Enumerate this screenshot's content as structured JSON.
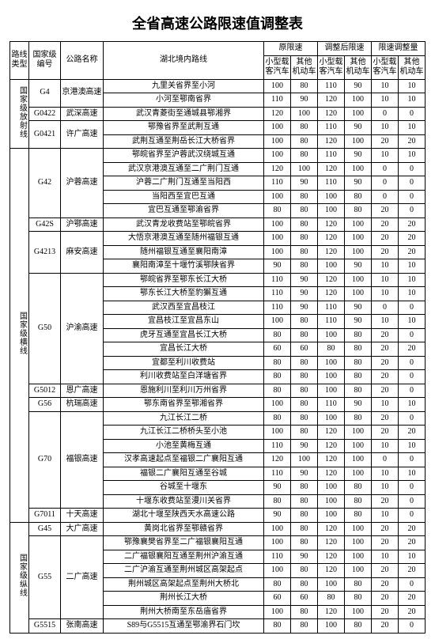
{
  "title": "全省高速公路限速值调整表",
  "header": {
    "routeType": "路线\n类型",
    "nationalCode": "国家级\n编号",
    "roadName": "公路名称",
    "segment": "湖北境内路线",
    "origLimit": "原限速",
    "newLimit": "调整后限速",
    "diff": "限速调整量",
    "smallCar": "小型载\n客汽车",
    "otherVeh": "其他\n机动车"
  },
  "groups": [
    {
      "routeType": "国家级放射线",
      "roads": [
        {
          "code": "G4",
          "name": "京港澳高速",
          "segs": [
            {
              "seg": "九里关省界至小河",
              "o1": 100,
              "o2": 80,
              "n1": 110,
              "n2": 90,
              "d1": 10,
              "d2": 10
            },
            {
              "seg": "小河至鄂南省界",
              "o1": 110,
              "o2": 90,
              "n1": 120,
              "n2": 100,
              "d1": 10,
              "d2": 10
            }
          ]
        },
        {
          "code": "G0422",
          "name": "武深高速",
          "segs": [
            {
              "seg": "武汉青菱街至通城县鄂湘界",
              "o1": 120,
              "o2": 100,
              "n1": 120,
              "n2": 100,
              "d1": 0,
              "d2": 0
            }
          ]
        },
        {
          "code": "G0421",
          "name": "许广高速",
          "segs": [
            {
              "seg": "鄂豫省界至武荆互通",
              "o1": 100,
              "o2": 80,
              "n1": 110,
              "n2": 90,
              "d1": 10,
              "d2": 10
            },
            {
              "seg": "武荆互通至荆岳长江大桥省界",
              "o1": 100,
              "o2": 80,
              "n1": 120,
              "n2": 100,
              "d1": 20,
              "d2": 20
            }
          ]
        }
      ]
    },
    {
      "routeType": "国家级横线",
      "roads": [
        {
          "code": "G42",
          "name": "沪蓉高速",
          "segs": [
            {
              "seg": "鄂皖省界至沪蓉武汉绕城互通",
              "o1": 100,
              "o2": 80,
              "n1": 110,
              "n2": 90,
              "d1": 10,
              "d2": 10
            },
            {
              "seg": "武汉京港澳互通至二广荆门互通",
              "o1": 120,
              "o2": 100,
              "n1": 120,
              "n2": 100,
              "d1": 0,
              "d2": 0
            },
            {
              "seg": "沪蓉二广荆门互通至当阳西",
              "o1": 110,
              "o2": 90,
              "n1": 110,
              "n2": 90,
              "d1": 0,
              "d2": 0
            },
            {
              "seg": "当阳西至宜巴互通",
              "o1": 100,
              "o2": 80,
              "n1": 100,
              "n2": 80,
              "d1": 0,
              "d2": 0
            },
            {
              "seg": "宜巴互通至鄂渝省界",
              "o1": 80,
              "o2": 80,
              "n1": 100,
              "n2": 80,
              "d1": 20,
              "d2": 0
            }
          ]
        },
        {
          "code": "G42S",
          "name": "沪鄂高速",
          "segs": [
            {
              "seg": "武汉青龙收费站至鄂皖省界",
              "o1": 100,
              "o2": 80,
              "n1": 120,
              "n2": 100,
              "d1": 20,
              "d2": 20
            }
          ]
        },
        {
          "code": "G4213",
          "name": "麻安高速",
          "segs": [
            {
              "seg": "大悟京港澳互通至随州福银互通",
              "o1": 100,
              "o2": 80,
              "n1": 120,
              "n2": 100,
              "d1": 20,
              "d2": 20
            },
            {
              "seg": "随州福银互通至襄阳南漳",
              "o1": 100,
              "o2": 80,
              "n1": 120,
              "n2": 100,
              "d1": 20,
              "d2": 20
            },
            {
              "seg": "襄阳南漳至十堰竹溪鄂陕省界",
              "o1": 90,
              "o2": 80,
              "n1": 100,
              "n2": 90,
              "d1": 10,
              "d2": 10
            }
          ]
        },
        {
          "code": "G50",
          "name": "沪渝高速",
          "segs": [
            {
              "seg": "鄂皖省界至鄂东长江大桥",
              "o1": 110,
              "o2": 90,
              "n1": 120,
              "n2": 100,
              "d1": 10,
              "d2": 10
            },
            {
              "seg": "鄂东长江大桥至豹獬互通",
              "o1": 110,
              "o2": 90,
              "n1": 120,
              "n2": 100,
              "d1": 10,
              "d2": 10
            },
            {
              "seg": "武汉西至宜昌枝江",
              "o1": 110,
              "o2": 90,
              "n1": 110,
              "n2": 90,
              "d1": 0,
              "d2": 0
            },
            {
              "seg": "宜昌枝江至宜昌东山",
              "o1": 100,
              "o2": 80,
              "n1": 110,
              "n2": 90,
              "d1": 10,
              "d2": 10
            },
            {
              "seg": "虎牙互通至宜昌长江大桥",
              "o1": 80,
              "o2": 80,
              "n1": 100,
              "n2": 80,
              "d1": 20,
              "d2": 0
            },
            {
              "seg": "宜昌长江大桥",
              "o1": 60,
              "o2": 60,
              "n1": 80,
              "n2": 80,
              "d1": 20,
              "d2": 20
            },
            {
              "seg": "宜都至利川收费站",
              "o1": 80,
              "o2": 80,
              "n1": 100,
              "n2": 80,
              "d1": 20,
              "d2": 0
            },
            {
              "seg": "利川收费站至白洋塘省界",
              "o1": 80,
              "o2": 80,
              "n1": 100,
              "n2": 80,
              "d1": 20,
              "d2": 0
            }
          ]
        },
        {
          "code": "G5012",
          "name": "恩广高速",
          "segs": [
            {
              "seg": "恩施利川至利川万州省界",
              "o1": 80,
              "o2": 80,
              "n1": 100,
              "n2": 80,
              "d1": 20,
              "d2": 0
            }
          ]
        },
        {
          "code": "G56",
          "name": "杭瑞高速",
          "segs": [
            {
              "seg": "鄂东南省界至鄂湘省界",
              "o1": 100,
              "o2": 80,
              "n1": 110,
              "n2": 90,
              "d1": 10,
              "d2": 10
            }
          ]
        },
        {
          "code": "G70",
          "name": "福银高速",
          "segs": [
            {
              "seg": "九江长江二桥",
              "o1": 80,
              "o2": 80,
              "n1": 100,
              "n2": 80,
              "d1": 20,
              "d2": 0
            },
            {
              "seg": "九江长江二桥桥头至小池",
              "o1": 100,
              "o2": 80,
              "n1": 120,
              "n2": 100,
              "d1": 20,
              "d2": 20
            },
            {
              "seg": "小池至黄梅互通",
              "o1": 110,
              "o2": 90,
              "n1": 120,
              "n2": 100,
              "d1": 10,
              "d2": 10
            },
            {
              "seg": "汉孝高速起点至福银二广襄阳互通",
              "o1": 120,
              "o2": 100,
              "n1": 120,
              "n2": 100,
              "d1": 0,
              "d2": 0
            },
            {
              "seg": "福银二广襄阳互通至谷城",
              "o1": 110,
              "o2": 90,
              "n1": 120,
              "n2": 100,
              "d1": 10,
              "d2": 10
            },
            {
              "seg": "谷城至十堰东",
              "o1": 90,
              "o2": 80,
              "n1": 100,
              "n2": 80,
              "d1": 10,
              "d2": 0
            },
            {
              "seg": "十堰东收费站至漫川关省界",
              "o1": 80,
              "o2": 80,
              "n1": 100,
              "n2": 80,
              "d1": 20,
              "d2": 0
            }
          ]
        },
        {
          "code": "G7011",
          "name": "十天高速",
          "segs": [
            {
              "seg": "湖北十堰至陕西天水高速公路",
              "o1": 90,
              "o2": 80,
              "n1": 100,
              "n2": 80,
              "d1": 10,
              "d2": 0
            }
          ]
        }
      ]
    },
    {
      "routeType": "国家级纵线",
      "roads": [
        {
          "code": "G45",
          "name": "大广高速",
          "segs": [
            {
              "seg": "黄岗北省界至鄂赣省界",
              "o1": 100,
              "o2": 80,
              "n1": 120,
              "n2": 100,
              "d1": 20,
              "d2": 20
            }
          ]
        },
        {
          "code": "G55",
          "name": "二广高速",
          "segs": [
            {
              "seg": "鄂豫襄樊省界至二广福银襄阳互通",
              "o1": 100,
              "o2": 80,
              "n1": 120,
              "n2": 100,
              "d1": 20,
              "d2": 20
            },
            {
              "seg": "二广福银襄阳互通至荆州沪渝互通",
              "o1": 110,
              "o2": 90,
              "n1": 120,
              "n2": 100,
              "d1": 10,
              "d2": 10
            },
            {
              "seg": "二广沪渝互通至荆州城区高架起点",
              "o1": 100,
              "o2": 80,
              "n1": 120,
              "n2": 100,
              "d1": 20,
              "d2": 20
            },
            {
              "seg": "荆州城区高架起点至荆州大桥北",
              "o1": 80,
              "o2": 80,
              "n1": 100,
              "n2": 80,
              "d1": 20,
              "d2": 0
            },
            {
              "seg": "荆州长江大桥",
              "o1": 60,
              "o2": 60,
              "n1": 80,
              "n2": 80,
              "d1": 20,
              "d2": 20
            },
            {
              "seg": "荆州大桥南至东岳庙省界",
              "o1": 100,
              "o2": 80,
              "n1": 120,
              "n2": 100,
              "d1": 20,
              "d2": 20
            }
          ]
        },
        {
          "code": "G5515",
          "name": "张南高速",
          "segs": [
            {
              "seg": "S89与G5515互通至鄂渝界石门坎",
              "o1": 80,
              "o2": 80,
              "n1": 100,
              "n2": 80,
              "d1": 20,
              "d2": 0
            }
          ]
        }
      ]
    }
  ]
}
